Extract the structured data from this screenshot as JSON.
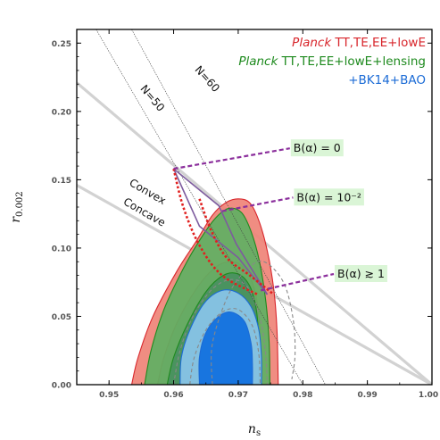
{
  "chart_data": {
    "type": "contour",
    "xlabel_main": "n",
    "xlabel_sub": "s",
    "ylabel_main": "r",
    "ylabel_sub": "0.002",
    "xlim": [
      0.945,
      1.0
    ],
    "ylim": [
      0.0,
      0.26
    ],
    "xticks": [
      "0.95",
      "0.96",
      "0.97",
      "0.98",
      "0.99",
      "1.00"
    ],
    "yticks": [
      "0.00",
      "0.05",
      "0.10",
      "0.15",
      "0.20",
      "0.25"
    ],
    "grid": false,
    "legend_position": "top-right",
    "legend": [
      {
        "italic": "Planck",
        "text": " TT,TE,EE+lowE",
        "color": "#d8262c"
      },
      {
        "italic": "Planck",
        "text": " TT,TE,EE+lowE+lensing",
        "color": "#1e8a1e"
      },
      {
        "italic": "",
        "text": "+BK14+BAO",
        "color": "#1b6bd6"
      }
    ],
    "series": [
      {
        "color": "#ef8377",
        "outline": "#d8262c",
        "contours": [
          {
            "level": "95%",
            "points": [
              [
                0.9535,
                0.0
              ],
              [
                0.9545,
                0.02
              ],
              [
                0.9568,
                0.05
              ],
              [
                0.9605,
                0.083
              ],
              [
                0.9635,
                0.105
              ],
              [
                0.966,
                0.124
              ],
              [
                0.968,
                0.133
              ],
              [
                0.97,
                0.136
              ],
              [
                0.9718,
                0.133
              ],
              [
                0.9732,
                0.12
              ],
              [
                0.9745,
                0.098
              ],
              [
                0.9755,
                0.07
              ],
              [
                0.976,
                0.04
              ],
              [
                0.9762,
                0.0
              ]
            ]
          },
          {
            "level": "68%",
            "points": [
              [
                0.9575,
                0.0
              ],
              [
                0.9585,
                0.02
              ],
              [
                0.9605,
                0.045
              ],
              [
                0.9635,
                0.07
              ],
              [
                0.9665,
                0.086
              ],
              [
                0.969,
                0.09
              ],
              [
                0.971,
                0.085
              ],
              [
                0.9725,
                0.07
              ],
              [
                0.9733,
                0.045
              ],
              [
                0.9735,
                0.0
              ]
            ]
          }
        ]
      },
      {
        "color": "#60b063",
        "outline": "#1e8a1e",
        "contours": [
          {
            "level": "95%",
            "points": [
              [
                0.9555,
                0.0
              ],
              [
                0.9565,
                0.025
              ],
              [
                0.9585,
                0.055
              ],
              [
                0.9615,
                0.085
              ],
              [
                0.9642,
                0.107
              ],
              [
                0.9665,
                0.122
              ],
              [
                0.9685,
                0.129
              ],
              [
                0.9705,
                0.126
              ],
              [
                0.972,
                0.112
              ],
              [
                0.9733,
                0.09
              ],
              [
                0.9743,
                0.06
              ],
              [
                0.9748,
                0.03
              ],
              [
                0.9749,
                0.0
              ]
            ]
          },
          {
            "level": "68%",
            "points": [
              [
                0.959,
                0.0
              ],
              [
                0.96,
                0.02
              ],
              [
                0.9622,
                0.045
              ],
              [
                0.965,
                0.068
              ],
              [
                0.9677,
                0.08
              ],
              [
                0.97,
                0.081
              ],
              [
                0.9718,
                0.072
              ],
              [
                0.9728,
                0.055
              ],
              [
                0.9732,
                0.03
              ],
              [
                0.9732,
                0.0
              ]
            ]
          }
        ]
      },
      {
        "color": "#89c4ec",
        "outline": "#1b6bd6",
        "contours": [
          {
            "level": "95%",
            "points": [
              [
                0.961,
                0.0
              ],
              [
                0.9612,
                0.02
              ],
              [
                0.9625,
                0.04
              ],
              [
                0.9648,
                0.06
              ],
              [
                0.9675,
                0.069
              ],
              [
                0.97,
                0.067
              ],
              [
                0.972,
                0.057
              ],
              [
                0.9732,
                0.04
              ],
              [
                0.9736,
                0.02
              ],
              [
                0.9736,
                0.0
              ]
            ]
          },
          {
            "level": "68%",
            "points": [
              [
                0.964,
                0.0
              ],
              [
                0.964,
                0.02
              ],
              [
                0.965,
                0.038
              ],
              [
                0.967,
                0.05
              ],
              [
                0.969,
                0.053
              ],
              [
                0.971,
                0.046
              ],
              [
                0.972,
                0.03
              ],
              [
                0.9722,
                0.015
              ],
              [
                0.9722,
                0.0
              ]
            ]
          }
        ]
      }
    ],
    "dashed_contours": [
      [
        [
          0.96,
          0.0
        ],
        [
          0.961,
          0.025
        ],
        [
          0.963,
          0.05
        ],
        [
          0.966,
          0.07
        ],
        [
          0.969,
          0.077
        ],
        [
          0.9715,
          0.071
        ],
        [
          0.9733,
          0.05
        ],
        [
          0.9742,
          0.025
        ],
        [
          0.9745,
          0.0
        ]
      ],
      [
        [
          0.9625,
          0.0
        ],
        [
          0.9632,
          0.02
        ],
        [
          0.965,
          0.04
        ],
        [
          0.9675,
          0.053
        ],
        [
          0.97,
          0.055
        ],
        [
          0.9722,
          0.043
        ],
        [
          0.9732,
          0.022
        ],
        [
          0.9734,
          0.0
        ]
      ],
      [
        [
          0.966,
          0.0
        ],
        [
          0.966,
          0.03
        ],
        [
          0.9685,
          0.066
        ],
        [
          0.9715,
          0.085
        ],
        [
          0.974,
          0.09
        ],
        [
          0.977,
          0.075
        ],
        [
          0.9785,
          0.048
        ],
        [
          0.9788,
          0.022
        ],
        [
          0.9783,
          0.004
        ]
      ]
    ],
    "straight_lines": [
      {
        "from": [
          0.945,
          0.221
        ],
        "to": [
          1.0,
          0.0
        ],
        "label": ""
      },
      {
        "from": [
          0.945,
          0.146
        ],
        "to": [
          1.0,
          0.0
        ],
        "label": ""
      }
    ],
    "line_labels": [
      {
        "text": "N=60",
        "at": [
          0.9648,
          0.222
        ],
        "rotate": 48
      },
      {
        "text": "N=50",
        "at": [
          0.9563,
          0.208
        ],
        "rotate": 50
      },
      {
        "text": "Convex",
        "at": [
          0.9557,
          0.139
        ],
        "rotate": 30
      },
      {
        "text": "Concave",
        "at": [
          0.9552,
          0.124
        ],
        "rotate": 30
      }
    ],
    "n_lines": [
      {
        "from": [
          0.9535,
          0.26
        ],
        "to": [
          0.9835,
          0.0
        ]
      },
      {
        "from": [
          0.948,
          0.26
        ],
        "to": [
          0.98,
          0.0
        ]
      }
    ],
    "red_dotted": [
      [
        [
          0.96,
          0.158
        ],
        [
          0.9615,
          0.13
        ],
        [
          0.964,
          0.102
        ],
        [
          0.9675,
          0.08
        ],
        [
          0.973,
          0.066
        ]
      ],
      [
        [
          0.964,
          0.136
        ],
        [
          0.9658,
          0.113
        ],
        [
          0.9682,
          0.093
        ],
        [
          0.9718,
          0.08
        ],
        [
          0.9755,
          0.066
        ]
      ]
    ],
    "model_curves": [
      [
        [
          0.96,
          0.158
        ],
        [
          0.967,
          0.131
        ],
        [
          0.9697,
          0.103
        ],
        [
          0.9745,
          0.066
        ]
      ],
      [
        [
          0.96,
          0.158
        ],
        [
          0.964,
          0.116
        ],
        [
          0.97,
          0.093
        ],
        [
          0.9745,
          0.066
        ]
      ]
    ],
    "annotations": [
      {
        "text": "B(α) = 0",
        "label_at": [
          0.978,
          0.173
        ],
        "target": [
          0.96,
          0.158
        ]
      },
      {
        "text": "B(α) = 10⁻²",
        "label_at": [
          0.9785,
          0.137
        ],
        "target": [
          0.9675,
          0.127
        ]
      },
      {
        "text": "B(α) ≳ 1",
        "label_at": [
          0.9848,
          0.081
        ],
        "target": [
          0.9735,
          0.069
        ]
      }
    ]
  }
}
